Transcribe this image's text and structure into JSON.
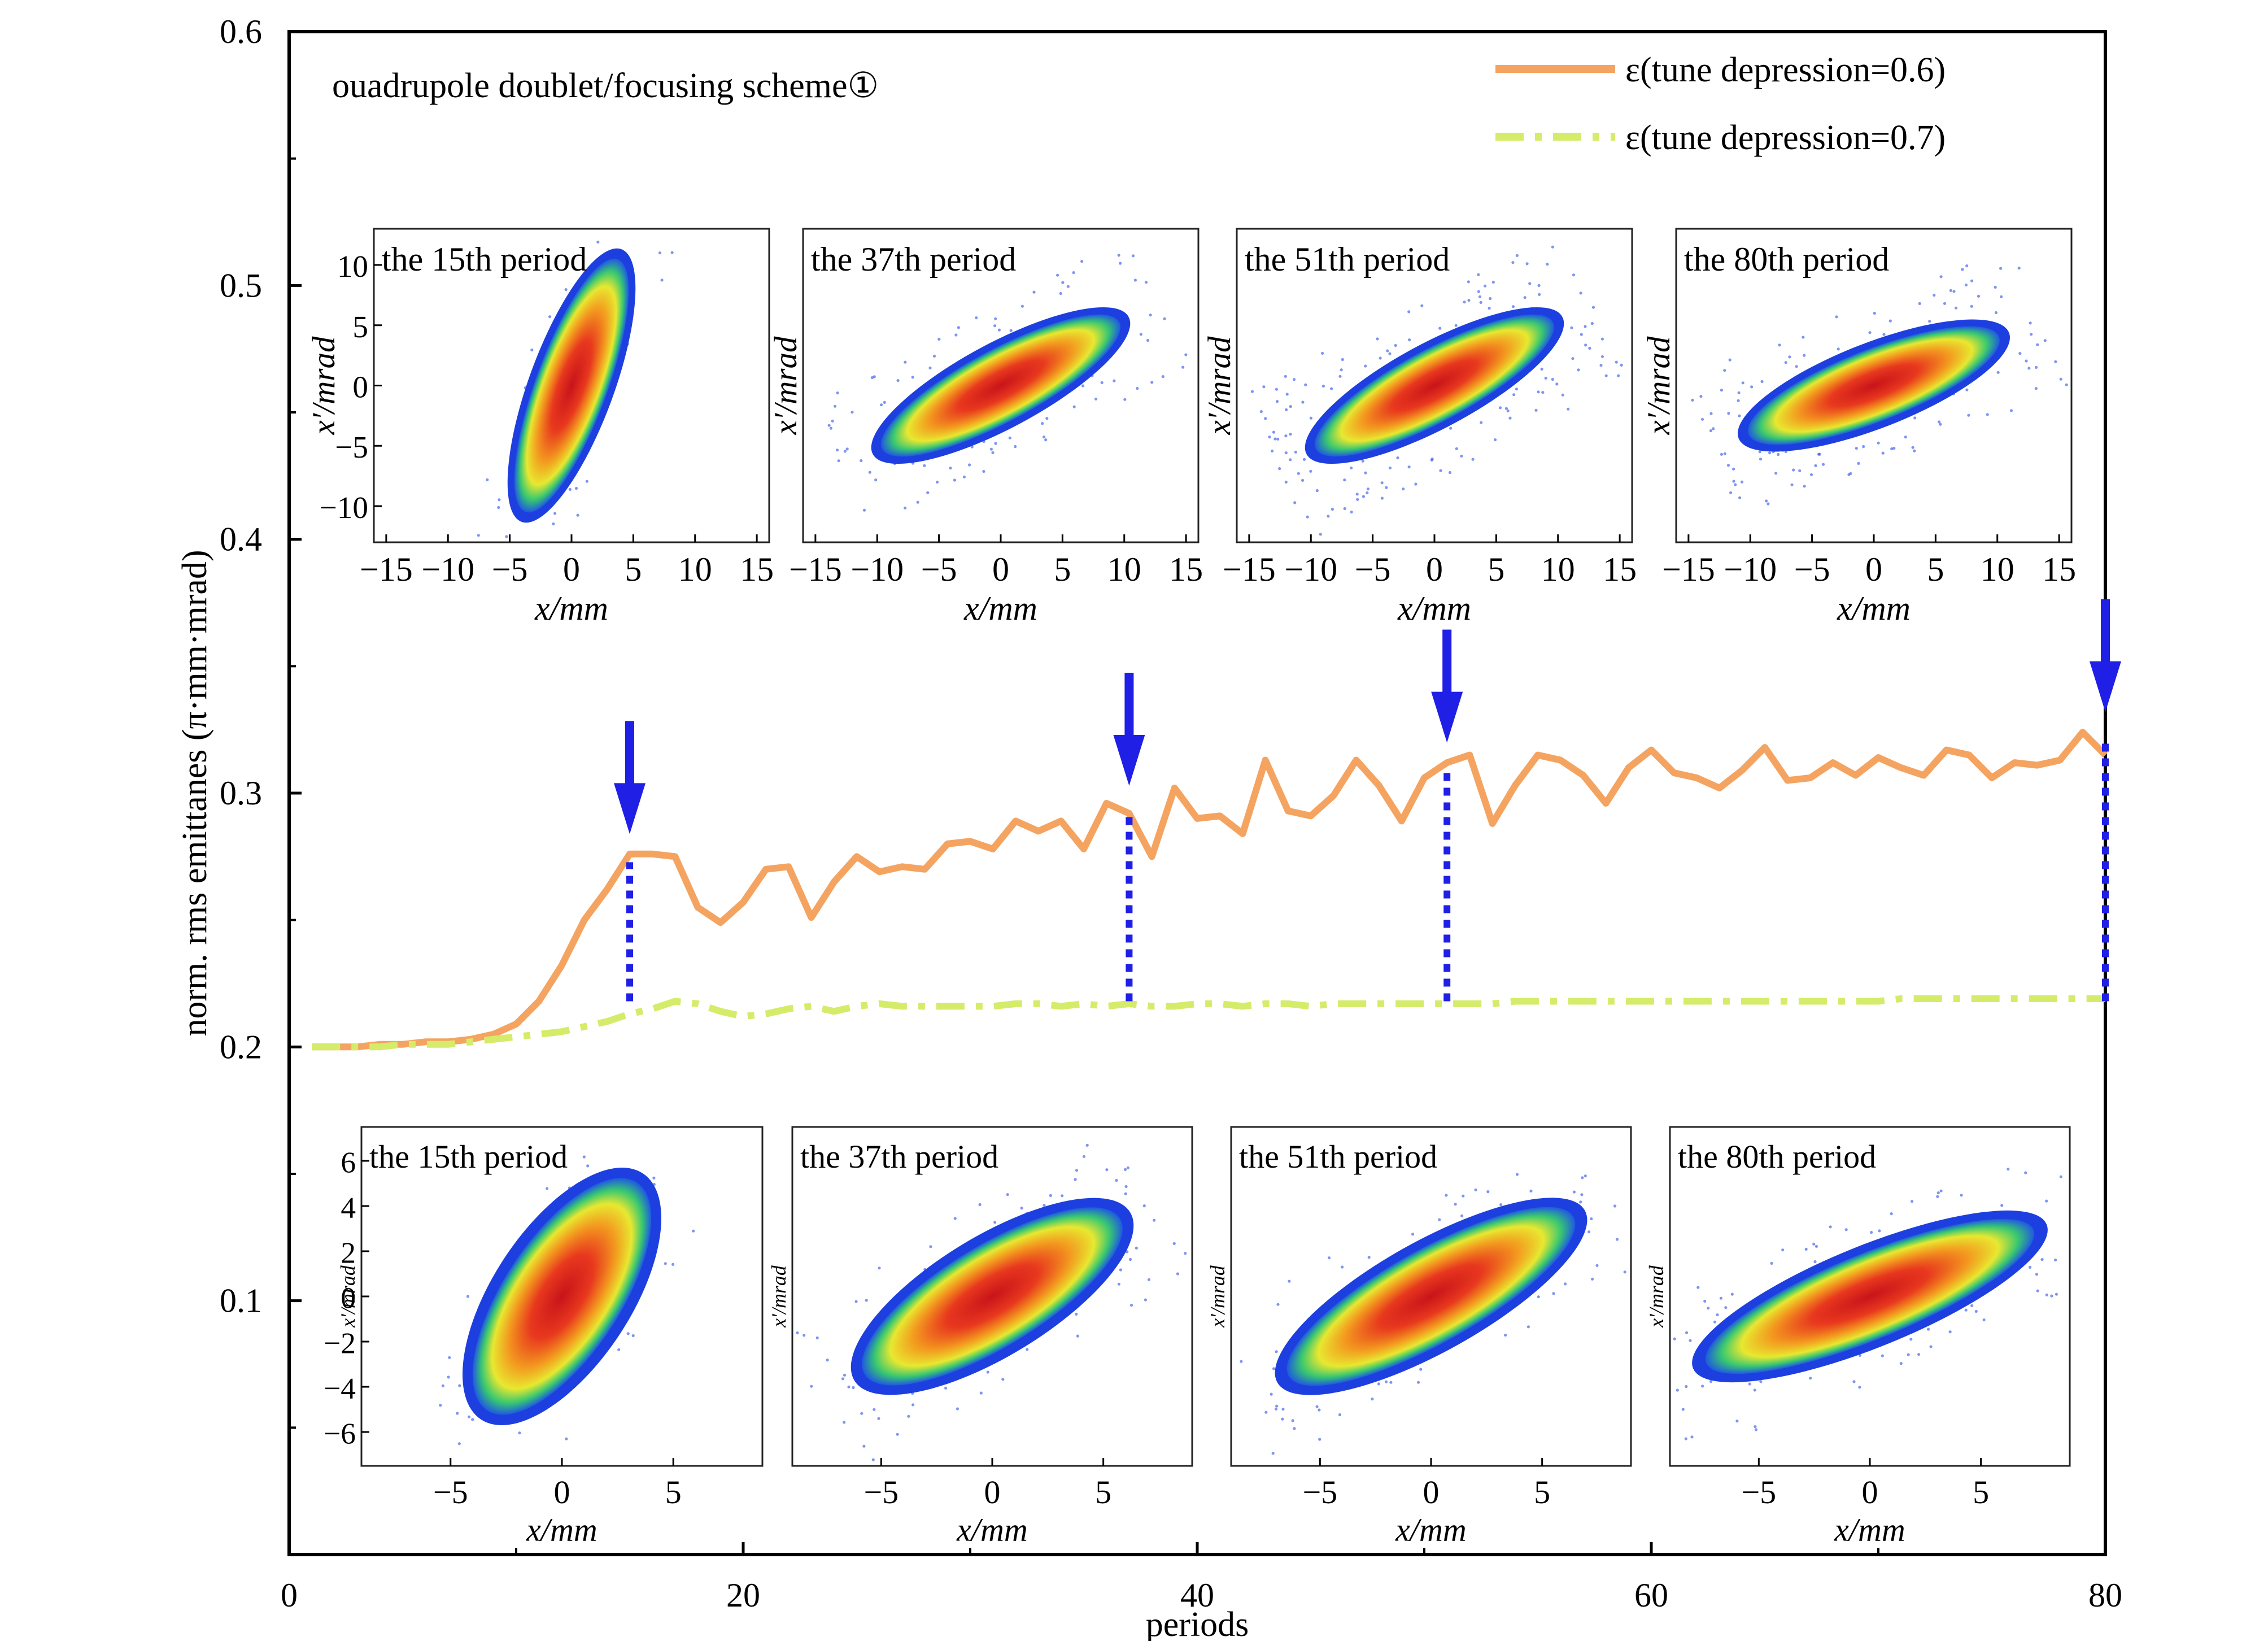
{
  "chart_data": {
    "type": "line",
    "xlabel": "periods",
    "ylabel": "norm. rms emittanes (π·mm·mrad)",
    "annotation": "ouadrupole doublet/focusing scheme①",
    "xlim": [
      0,
      80
    ],
    "ylim": [
      0,
      0.6
    ],
    "x_ticks": [
      "0",
      "20",
      "40",
      "60",
      "80"
    ],
    "y_ticks": [
      "0.1",
      "0.2",
      "0.3",
      "0.4",
      "0.5",
      "0.6"
    ],
    "legend_position": "top-right",
    "series": [
      {
        "name": "ε(tune depression=0.6)",
        "color": "#F4A460",
        "style": "solid",
        "x": [
          1,
          2,
          3,
          4,
          5,
          6,
          7,
          8,
          9,
          10,
          11,
          12,
          13,
          14,
          15,
          16,
          17,
          18,
          19,
          20,
          21,
          22,
          23,
          24,
          25,
          26,
          27,
          28,
          29,
          30,
          31,
          32,
          33,
          34,
          35,
          36,
          37,
          38,
          39,
          40,
          41,
          42,
          43,
          44,
          45,
          46,
          47,
          48,
          49,
          50,
          51,
          52,
          53,
          54,
          55,
          56,
          57,
          58,
          59,
          60,
          61,
          62,
          63,
          64,
          65,
          66,
          67,
          68,
          69,
          70,
          71,
          72,
          73,
          74,
          75,
          76,
          77,
          78,
          79,
          80
        ],
        "y": [
          0.2,
          0.2,
          0.2,
          0.201,
          0.201,
          0.202,
          0.202,
          0.203,
          0.205,
          0.209,
          0.218,
          0.232,
          0.25,
          0.262,
          0.276,
          0.276,
          0.275,
          0.255,
          0.249,
          0.257,
          0.27,
          0.271,
          0.251,
          0.265,
          0.275,
          0.269,
          0.271,
          0.27,
          0.28,
          0.281,
          0.278,
          0.289,
          0.285,
          0.289,
          0.278,
          0.296,
          0.292,
          0.275,
          0.302,
          0.29,
          0.291,
          0.284,
          0.313,
          0.293,
          0.291,
          0.299,
          0.313,
          0.303,
          0.289,
          0.306,
          0.312,
          0.315,
          0.288,
          0.303,
          0.315,
          0.313,
          0.307,
          0.296,
          0.31,
          0.317,
          0.308,
          0.306,
          0.302,
          0.309,
          0.318,
          0.305,
          0.306,
          0.312,
          0.307,
          0.314,
          0.31,
          0.307,
          0.317,
          0.315,
          0.306,
          0.312,
          0.311,
          0.313,
          0.324,
          0.315
        ]
      },
      {
        "name": "ε(tune depression=0.7)",
        "color": "#D4EC6A",
        "style": "dashdot",
        "x": [
          1,
          2,
          3,
          4,
          5,
          6,
          7,
          8,
          9,
          10,
          11,
          12,
          13,
          14,
          15,
          16,
          17,
          18,
          19,
          20,
          21,
          22,
          23,
          24,
          25,
          26,
          27,
          28,
          29,
          30,
          31,
          32,
          33,
          34,
          35,
          36,
          37,
          38,
          39,
          40,
          41,
          42,
          43,
          44,
          45,
          46,
          47,
          48,
          49,
          50,
          51,
          52,
          53,
          54,
          55,
          56,
          57,
          58,
          59,
          60,
          61,
          62,
          63,
          64,
          65,
          66,
          67,
          68,
          69,
          70,
          71,
          72,
          73,
          74,
          75,
          76,
          77,
          78,
          79,
          80
        ],
        "y": [
          0.2,
          0.2,
          0.2,
          0.2,
          0.201,
          0.201,
          0.201,
          0.202,
          0.203,
          0.204,
          0.205,
          0.206,
          0.208,
          0.21,
          0.213,
          0.215,
          0.218,
          0.217,
          0.214,
          0.212,
          0.213,
          0.215,
          0.216,
          0.214,
          0.216,
          0.217,
          0.216,
          0.216,
          0.216,
          0.216,
          0.216,
          0.217,
          0.217,
          0.216,
          0.217,
          0.216,
          0.217,
          0.216,
          0.216,
          0.217,
          0.217,
          0.216,
          0.217,
          0.217,
          0.216,
          0.217,
          0.217,
          0.217,
          0.217,
          0.217,
          0.217,
          0.217,
          0.217,
          0.218,
          0.218,
          0.218,
          0.218,
          0.218,
          0.218,
          0.218,
          0.218,
          0.218,
          0.218,
          0.218,
          0.218,
          0.218,
          0.218,
          0.218,
          0.218,
          0.218,
          0.219,
          0.219,
          0.219,
          0.219,
          0.219,
          0.219,
          0.219,
          0.219,
          0.219,
          0.219
        ]
      }
    ],
    "arrows": [
      {
        "label_period": 15,
        "y_top": 0.275
      },
      {
        "label_period": 37,
        "y_top": 0.294
      },
      {
        "label_period": 51,
        "y_top": 0.311
      },
      {
        "label_period": 80,
        "y_top": 0.323
      }
    ],
    "insets_top": [
      {
        "title": "the 15th period",
        "xlabel": "x/mm",
        "ylabel": "x′/mrad",
        "x_ticks": [
          "−15",
          "−10",
          "−5",
          "0",
          "5",
          "10",
          "15"
        ],
        "y_ticks": [
          "10",
          "5",
          "0",
          "−5",
          "−10"
        ],
        "shape": {
          "slope": 2.8,
          "width": 1.0,
          "len": 1.0,
          "halo": 0.06
        }
      },
      {
        "title": "the 37th period",
        "xlabel": "x/mm",
        "ylabel": "x′/mrad",
        "x_ticks": [
          "−15",
          "−10",
          "−5",
          "0",
          "5",
          "10",
          "15"
        ],
        "y_ticks": [],
        "shape": {
          "slope": 0.55,
          "width": 1.0,
          "len": 1.0,
          "halo": 0.35
        }
      },
      {
        "title": "the 51th period",
        "xlabel": "x/mm",
        "ylabel": "x′/mrad",
        "x_ticks": [
          "−15",
          "−10",
          "−5",
          "0",
          "5",
          "10",
          "15"
        ],
        "y_ticks": [],
        "shape": {
          "slope": 0.55,
          "width": 1.0,
          "len": 1.0,
          "halo": 0.55
        }
      },
      {
        "title": "the 80th period",
        "xlabel": "x/mm",
        "ylabel": "x′/mrad",
        "x_ticks": [
          "−15",
          "−10",
          "−5",
          "0",
          "5",
          "10",
          "15"
        ],
        "y_ticks": [],
        "shape": {
          "slope": 0.4,
          "width": 1.0,
          "len": 1.0,
          "halo": 0.45
        }
      }
    ],
    "insets_bottom": [
      {
        "title": "the 15th period",
        "xlabel": "x/mm",
        "ylabel": "x′/mrad",
        "x_ticks": [
          "−5",
          "0",
          "5"
        ],
        "y_ticks": [
          "6",
          "4",
          "2",
          "0",
          "−2",
          "−4",
          "−6"
        ],
        "shape": {
          "slope": 1.5,
          "width": 1.5,
          "len": 1.0,
          "halo": 0.05
        }
      },
      {
        "title": "the 37th period",
        "xlabel": "x/mm",
        "ylabel": "x′/mrad",
        "x_ticks": [
          "−5",
          "0",
          "5"
        ],
        "y_ticks": [],
        "shape": {
          "slope": 0.6,
          "width": 1.3,
          "len": 1.1,
          "halo": 0.2
        }
      },
      {
        "title": "the 51th period",
        "xlabel": "x/mm",
        "ylabel": "x′/mrad",
        "x_ticks": [
          "−5",
          "0",
          "5"
        ],
        "y_ticks": [],
        "shape": {
          "slope": 0.55,
          "width": 1.2,
          "len": 1.2,
          "halo": 0.25
        }
      },
      {
        "title": "the 80th period",
        "xlabel": "x/mm",
        "ylabel": "x′/mrad",
        "x_ticks": [
          "−5",
          "0",
          "5"
        ],
        "y_ticks": [],
        "shape": {
          "slope": 0.4,
          "width": 1.1,
          "len": 1.3,
          "halo": 0.3
        }
      }
    ]
  }
}
